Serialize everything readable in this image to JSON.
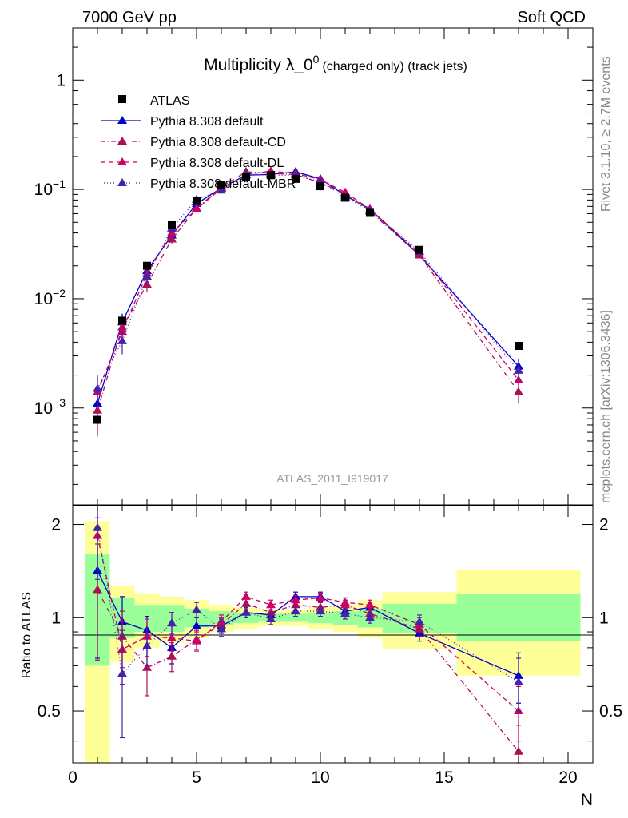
{
  "header": {
    "left": "7000 GeV pp",
    "right": "Soft QCD"
  },
  "side_labels": {
    "rivet": "Rivet 3.1.10, ≥ 2.7M events",
    "mcplots": "mcplots.cern.ch [arXiv:1306.3436]"
  },
  "watermark": "ATLAS_2011_I919017",
  "colors": {
    "data": "#000000",
    "default": "#0000cc",
    "cd": "#aa1155",
    "dl": "#cc0066",
    "mbr": "#4422aa",
    "band_inner": "#99ff99",
    "band_outer": "#ffff99"
  },
  "chart_data": [
    {
      "type": "scatter",
      "title": "Multiplicity λ_0",
      "title_sup": "0",
      "title_suffix": "(charged only) (track jets)",
      "xlim": [
        0,
        21
      ],
      "ylim": [
        0.00013,
        3.0
      ],
      "yscale": "log",
      "yticklabels": [
        {
          "v": 0.001,
          "base": "10",
          "exp": "−3"
        },
        {
          "v": 0.01,
          "base": "10",
          "exp": "−2"
        },
        {
          "v": 0.1,
          "base": "10",
          "exp": "−1"
        },
        {
          "v": 1,
          "base": "1",
          "exp": ""
        }
      ],
      "legend_position": "top-left",
      "series": [
        {
          "name": "ATLAS",
          "key": "data",
          "style": "marker",
          "x": [
            1,
            2,
            3,
            4,
            5,
            6,
            7,
            8,
            9,
            10,
            11,
            12,
            14,
            18
          ],
          "y": [
            0.00078,
            0.0063,
            0.02,
            0.047,
            0.079,
            0.11,
            0.13,
            0.135,
            0.125,
            0.107,
            0.084,
            0.061,
            0.028,
            0.0037
          ]
        },
        {
          "name": "Pythia 8.308 default",
          "key": "default",
          "style": "solid",
          "x": [
            1,
            2,
            3,
            4,
            5,
            6,
            7,
            8,
            9,
            10,
            11,
            12,
            14,
            18
          ],
          "y": [
            0.0011,
            0.0061,
            0.018,
            0.038,
            0.074,
            0.103,
            0.135,
            0.137,
            0.145,
            0.125,
            0.088,
            0.066,
            0.025,
            0.0024
          ],
          "err": [
            0.0004,
            0.0012,
            0.002,
            0.003,
            0.004,
            0.004,
            0.004,
            0.004,
            0.004,
            0.004,
            0.003,
            0.003,
            0.0015,
            0.0004
          ]
        },
        {
          "name": "Pythia 8.308 default-CD",
          "key": "cd",
          "style": "dashdot",
          "x": [
            1,
            2,
            3,
            4,
            5,
            6,
            7,
            8,
            9,
            10,
            11,
            12,
            14,
            18
          ],
          "y": [
            0.00095,
            0.0055,
            0.0135,
            0.035,
            0.067,
            0.105,
            0.145,
            0.14,
            0.137,
            0.115,
            0.092,
            0.063,
            0.025,
            0.0014
          ],
          "err": [
            0.0004,
            0.0011,
            0.002,
            0.003,
            0.004,
            0.004,
            0.004,
            0.004,
            0.004,
            0.004,
            0.003,
            0.003,
            0.0015,
            0.0003
          ]
        },
        {
          "name": "Pythia 8.308 default-DL",
          "key": "dl",
          "style": "dashed",
          "x": [
            1,
            2,
            3,
            4,
            5,
            6,
            7,
            8,
            9,
            10,
            11,
            12,
            14,
            18
          ],
          "y": [
            0.0014,
            0.005,
            0.017,
            0.04,
            0.066,
            0.102,
            0.137,
            0.147,
            0.14,
            0.123,
            0.094,
            0.066,
            0.026,
            0.0018
          ],
          "err": [
            0.0005,
            0.0011,
            0.002,
            0.003,
            0.004,
            0.004,
            0.004,
            0.004,
            0.004,
            0.004,
            0.003,
            0.003,
            0.0015,
            0.0003
          ]
        },
        {
          "name": "Pythia 8.308 default-MBR",
          "key": "mbr",
          "style": "dotted",
          "x": [
            1,
            2,
            3,
            4,
            5,
            6,
            7,
            8,
            9,
            10,
            11,
            12,
            14,
            18
          ],
          "y": [
            0.0015,
            0.0041,
            0.016,
            0.044,
            0.081,
            0.098,
            0.138,
            0.135,
            0.135,
            0.117,
            0.085,
            0.064,
            0.027,
            0.0022
          ],
          "err": [
            0.0005,
            0.001,
            0.002,
            0.003,
            0.004,
            0.004,
            0.004,
            0.004,
            0.004,
            0.004,
            0.003,
            0.003,
            0.0015,
            0.0004
          ]
        }
      ]
    },
    {
      "type": "scatter",
      "ylabel": "Ratio to ATLAS",
      "xlabel": "N",
      "xlim": [
        0,
        21
      ],
      "ylim": [
        0.34,
        2.3
      ],
      "xticks": [
        0,
        5,
        10,
        15,
        20
      ],
      "yticks": [
        0.5,
        1,
        2
      ],
      "uncertainty_bands": {
        "bins": [
          [
            0.5,
            1.5
          ],
          [
            1.5,
            2.5
          ],
          [
            2.5,
            3.5
          ],
          [
            3.5,
            4.5
          ],
          [
            4.5,
            5.5
          ],
          [
            5.5,
            6.5
          ],
          [
            6.5,
            7.5
          ],
          [
            7.5,
            8.5
          ],
          [
            8.5,
            9.5
          ],
          [
            9.5,
            10.5
          ],
          [
            10.5,
            11.5
          ],
          [
            11.5,
            12.5
          ],
          [
            12.5,
            15.5
          ],
          [
            15.5,
            20.5
          ]
        ],
        "inner": [
          [
            0.7,
            1.6
          ],
          [
            0.86,
            1.16
          ],
          [
            0.9,
            1.1
          ],
          [
            0.9,
            1.1
          ],
          [
            0.93,
            1.07
          ],
          [
            0.95,
            1.05
          ],
          [
            0.96,
            1.04
          ],
          [
            0.97,
            1.03
          ],
          [
            0.97,
            1.03
          ],
          [
            0.96,
            1.04
          ],
          [
            0.95,
            1.05
          ],
          [
            0.93,
            1.07
          ],
          [
            0.89,
            1.11
          ],
          [
            0.84,
            1.19
          ]
        ],
        "outer": [
          [
            0.34,
            2.05
          ],
          [
            0.72,
            1.27
          ],
          [
            0.8,
            1.2
          ],
          [
            0.83,
            1.17
          ],
          [
            0.86,
            1.14
          ],
          [
            0.9,
            1.1
          ],
          [
            0.92,
            1.08
          ],
          [
            0.94,
            1.06
          ],
          [
            0.94,
            1.06
          ],
          [
            0.92,
            1.08
          ],
          [
            0.9,
            1.1
          ],
          [
            0.86,
            1.14
          ],
          [
            0.79,
            1.21
          ],
          [
            0.65,
            1.43
          ]
        ]
      },
      "series": [
        {
          "name": "Pythia 8.308 default",
          "key": "default",
          "style": "solid",
          "x": [
            1,
            2,
            3,
            4,
            5,
            6,
            7,
            8,
            9,
            10,
            11,
            12,
            14,
            18
          ],
          "y": [
            1.42,
            0.97,
            0.91,
            0.8,
            0.94,
            0.94,
            1.04,
            1.02,
            1.17,
            1.17,
            1.05,
            1.08,
            0.89,
            0.65
          ],
          "err": [
            0.68,
            0.2,
            0.1,
            0.09,
            0.06,
            0.05,
            0.04,
            0.04,
            0.04,
            0.04,
            0.04,
            0.04,
            0.05,
            0.12
          ]
        },
        {
          "name": "Pythia 8.308 default-CD",
          "key": "cd",
          "style": "dashdot",
          "x": [
            1,
            2,
            3,
            4,
            5,
            6,
            7,
            8,
            9,
            10,
            11,
            12,
            14,
            18
          ],
          "y": [
            1.23,
            0.87,
            0.69,
            0.75,
            0.85,
            0.95,
            1.11,
            1.04,
            1.1,
            1.08,
            1.1,
            1.03,
            0.92,
            0.37
          ],
          "err": [
            0.5,
            0.18,
            0.13,
            0.08,
            0.06,
            0.05,
            0.04,
            0.04,
            0.04,
            0.04,
            0.04,
            0.04,
            0.05,
            0.08
          ]
        },
        {
          "name": "Pythia 8.308 default-DL",
          "key": "dl",
          "style": "dashed",
          "x": [
            1,
            2,
            3,
            4,
            5,
            6,
            7,
            8,
            9,
            10,
            11,
            12,
            14,
            18
          ],
          "y": [
            1.84,
            0.79,
            0.87,
            0.86,
            0.84,
            0.97,
            1.17,
            1.1,
            1.14,
            1.16,
            1.12,
            1.1,
            0.95,
            0.5
          ],
          "err": [
            0.6,
            0.18,
            0.12,
            0.08,
            0.06,
            0.05,
            0.04,
            0.04,
            0.04,
            0.04,
            0.04,
            0.04,
            0.05,
            0.1
          ]
        },
        {
          "name": "Pythia 8.308 default-MBR",
          "key": "mbr",
          "style": "dotted",
          "x": [
            1,
            2,
            3,
            4,
            5,
            6,
            7,
            8,
            9,
            10,
            11,
            12,
            14,
            18
          ],
          "y": [
            1.95,
            0.66,
            0.81,
            0.96,
            1.06,
            0.92,
            1.04,
            0.99,
            1.05,
            1.05,
            1.03,
            1.0,
            0.97,
            0.62
          ],
          "err": [
            0.62,
            0.25,
            0.11,
            0.08,
            0.06,
            0.05,
            0.04,
            0.04,
            0.04,
            0.04,
            0.04,
            0.04,
            0.05,
            0.12
          ]
        }
      ]
    }
  ]
}
